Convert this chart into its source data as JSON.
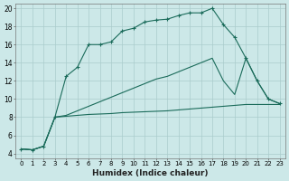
{
  "xlabel": "Humidex (Indice chaleur)",
  "bg_color": "#cce8e8",
  "grid_color": "#aacccc",
  "line_color": "#1a6b5a",
  "xlim": [
    -0.5,
    23.5
  ],
  "ylim": [
    3.5,
    20.5
  ],
  "yticks": [
    4,
    6,
    8,
    10,
    12,
    14,
    16,
    18,
    20
  ],
  "xticks": [
    0,
    1,
    2,
    3,
    4,
    5,
    6,
    7,
    8,
    9,
    10,
    11,
    12,
    13,
    14,
    15,
    16,
    17,
    18,
    19,
    20,
    21,
    22,
    23
  ],
  "line1_x": [
    0,
    1,
    2,
    3,
    4,
    5,
    6,
    7,
    8,
    9,
    10,
    11,
    12,
    13,
    14,
    15,
    16,
    17,
    18,
    19,
    20,
    21,
    22,
    23
  ],
  "line1_y": [
    4.5,
    4.4,
    4.8,
    8.0,
    12.5,
    13.5,
    16.0,
    16.0,
    16.3,
    17.5,
    17.8,
    18.5,
    18.7,
    18.8,
    19.2,
    19.5,
    19.5,
    20.0,
    18.2,
    16.8,
    14.5,
    12.0,
    10.0,
    9.5
  ],
  "line2_x": [
    0,
    1,
    2,
    3,
    4,
    5,
    6,
    7,
    8,
    9,
    10,
    11,
    12,
    13,
    14,
    15,
    16,
    17,
    18,
    19,
    20,
    21,
    22,
    23
  ],
  "line2_y": [
    4.5,
    4.4,
    4.8,
    8.0,
    8.2,
    8.7,
    9.2,
    9.7,
    10.2,
    10.7,
    11.2,
    11.7,
    12.2,
    12.5,
    13.0,
    13.5,
    14.0,
    14.5,
    12.0,
    10.5,
    14.5,
    12.0,
    10.0,
    9.5
  ],
  "line3_x": [
    0,
    1,
    2,
    3,
    4,
    5,
    6,
    7,
    8,
    9,
    10,
    11,
    12,
    13,
    14,
    15,
    16,
    17,
    18,
    19,
    20,
    21,
    22,
    23
  ],
  "line3_y": [
    4.5,
    4.4,
    4.8,
    8.0,
    8.1,
    8.2,
    8.3,
    8.35,
    8.4,
    8.5,
    8.55,
    8.6,
    8.65,
    8.7,
    8.8,
    8.9,
    9.0,
    9.1,
    9.2,
    9.3,
    9.4,
    9.4,
    9.4,
    9.4
  ]
}
